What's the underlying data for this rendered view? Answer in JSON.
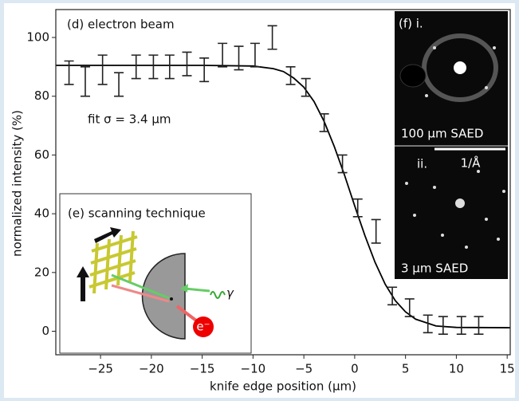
{
  "chart_data": {
    "type": "scatter",
    "x_label": "knife edge position (µm)",
    "y_label": "normalized intensity (%)",
    "xlim": [
      -29.4,
      15.3
    ],
    "ylim": [
      -8,
      109.5
    ],
    "xticks": [
      {
        "value": -25,
        "label": "−25"
      },
      {
        "value": -20,
        "label": "−20"
      },
      {
        "value": -15,
        "label": "−15"
      },
      {
        "value": -10,
        "label": "−10"
      },
      {
        "value": -5,
        "label": "−5"
      },
      0,
      5,
      10,
      15
    ],
    "yticks": [
      0,
      20,
      40,
      60,
      80,
      100
    ],
    "series": [
      {
        "color": "#222222",
        "x": [
          -28.1,
          -26.5,
          -24.8,
          -23.2,
          -21.5,
          -19.8,
          -18.2,
          -16.5,
          -14.8,
          -13.0,
          -11.4,
          -9.8,
          -8.1,
          -6.3,
          -4.8,
          -3.0,
          -1.2,
          0.3,
          2.1,
          3.7,
          5.4,
          7.2,
          8.7,
          10.5,
          12.2
        ],
        "values": [
          88,
          85,
          89,
          84,
          90,
          90,
          90,
          91,
          89,
          94,
          93,
          94,
          100,
          87,
          83,
          71,
          57,
          42,
          34,
          12,
          8,
          2.5,
          2,
          2,
          2
        ],
        "errors": [
          4,
          5,
          5,
          4,
          4,
          4,
          4,
          4,
          4,
          4,
          4,
          4,
          4,
          3,
          3,
          3,
          3,
          3,
          4,
          3,
          3,
          3,
          3,
          3,
          3
        ]
      }
    ],
    "fit_line": {
      "color": "#000000",
      "x": [
        -29.4,
        -15,
        -10,
        -8,
        -7,
        -6,
        -5,
        -4,
        -3,
        -2,
        -1,
        0,
        1,
        2,
        3,
        4,
        5,
        6,
        8,
        10,
        15.3
      ],
      "values": [
        90.5,
        90.5,
        90.3,
        89.4,
        88.4,
        86.2,
        83.1,
        78.2,
        71.4,
        62.8,
        53.2,
        42.7,
        32.6,
        23.5,
        16.0,
        10.4,
        6.6,
        4.1,
        1.8,
        1.3,
        1.2
      ]
    },
    "annotations": {
      "panel": "(d) electron beam",
      "fit": "fit  σ = 3.4 µm"
    },
    "insets": {
      "scanning": {
        "title": "(e) scanning technique",
        "gamma": "γ",
        "electron": "e⁻"
      },
      "saed": {
        "label_i": "(f) i.",
        "caption_i": "100 µm SAED",
        "label_ii": "ii.",
        "scale": "1/Å",
        "caption_ii": "3 µm SAED"
      }
    }
  }
}
